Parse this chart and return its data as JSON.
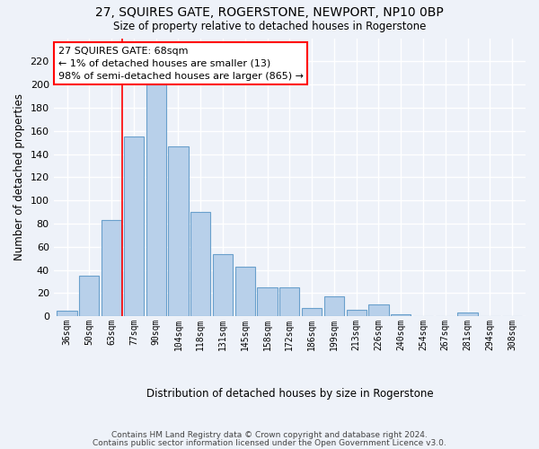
{
  "title": "27, SQUIRES GATE, ROGERSTONE, NEWPORT, NP10 0BP",
  "subtitle": "Size of property relative to detached houses in Rogerstone",
  "xlabel": "Distribution of detached houses by size in Rogerstone",
  "ylabel": "Number of detached properties",
  "categories": [
    "36sqm",
    "50sqm",
    "63sqm",
    "77sqm",
    "90sqm",
    "104sqm",
    "118sqm",
    "131sqm",
    "145sqm",
    "158sqm",
    "172sqm",
    "186sqm",
    "199sqm",
    "213sqm",
    "226sqm",
    "240sqm",
    "254sqm",
    "267sqm",
    "281sqm",
    "294sqm",
    "308sqm"
  ],
  "values": [
    5,
    35,
    83,
    155,
    200,
    147,
    90,
    54,
    43,
    25,
    25,
    7,
    17,
    6,
    10,
    2,
    0,
    0,
    3,
    0,
    0
  ],
  "bar_color": "#b8d0ea",
  "bar_edge_color": "#6aa0cc",
  "annotation_box_text": "27 SQUIRES GATE: 68sqm\n← 1% of detached houses are smaller (13)\n98% of semi-detached houses are larger (865) →",
  "vline_x_index": 2.5,
  "ylim": [
    0,
    240
  ],
  "yticks": [
    0,
    20,
    40,
    60,
    80,
    100,
    120,
    140,
    160,
    180,
    200,
    220
  ],
  "background_color": "#eef2f9",
  "grid_color": "#ffffff",
  "footer1": "Contains HM Land Registry data © Crown copyright and database right 2024.",
  "footer2": "Contains public sector information licensed under the Open Government Licence v3.0."
}
